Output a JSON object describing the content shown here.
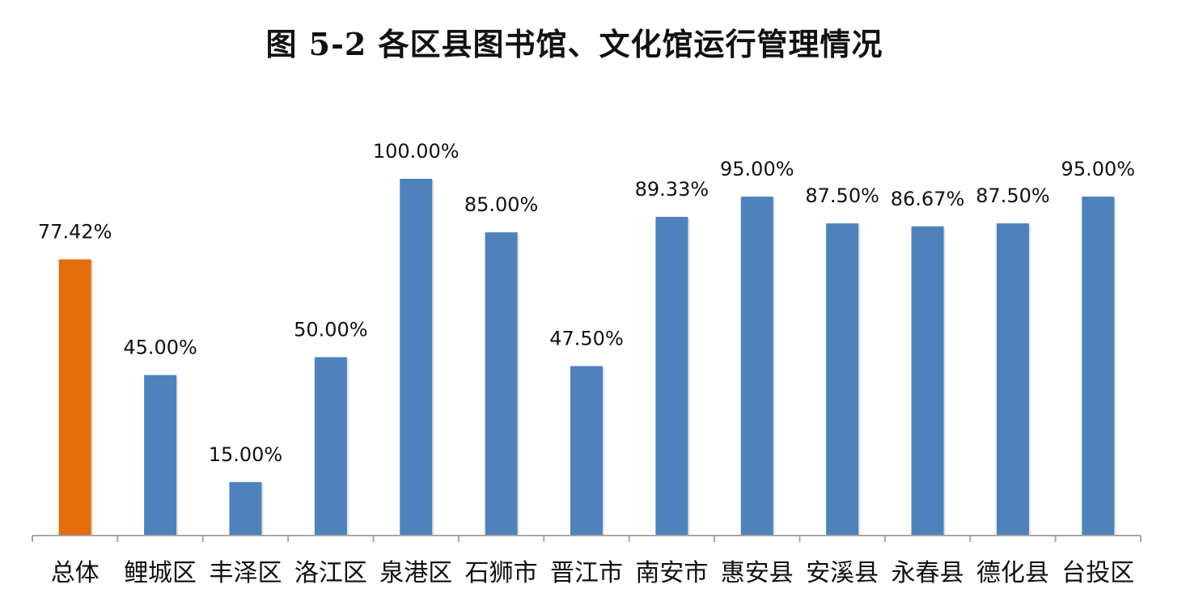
{
  "chart_data": {
    "type": "bar",
    "title": "图 5-2 各区县图书馆、文化馆运行管理情况",
    "xlabel": "",
    "ylabel": "",
    "ylim": [
      0,
      100
    ],
    "grid": false,
    "legend": "none",
    "categories": [
      "总体",
      "鲤城区",
      "丰泽区",
      "洛江区",
      "泉港区",
      "石狮市",
      "晋江市",
      "南安市",
      "惠安县",
      "安溪县",
      "永春县",
      "德化县",
      "台投区"
    ],
    "values": [
      77.42,
      45.0,
      15.0,
      50.0,
      100.0,
      85.0,
      47.5,
      89.33,
      95.0,
      87.5,
      86.67,
      87.5,
      95.0
    ],
    "data_labels": [
      "77.42%",
      "45.00%",
      "15.00%",
      "50.00%",
      "100.00%",
      "85.00%",
      "47.50%",
      "89.33%",
      "95.00%",
      "87.50%",
      "86.67%",
      "87.50%",
      "95.00%"
    ],
    "highlight_index": 0,
    "colors": {
      "highlight": "#E46C0A",
      "bar": "#4F81BD",
      "axis": "#A6A6A6"
    }
  }
}
